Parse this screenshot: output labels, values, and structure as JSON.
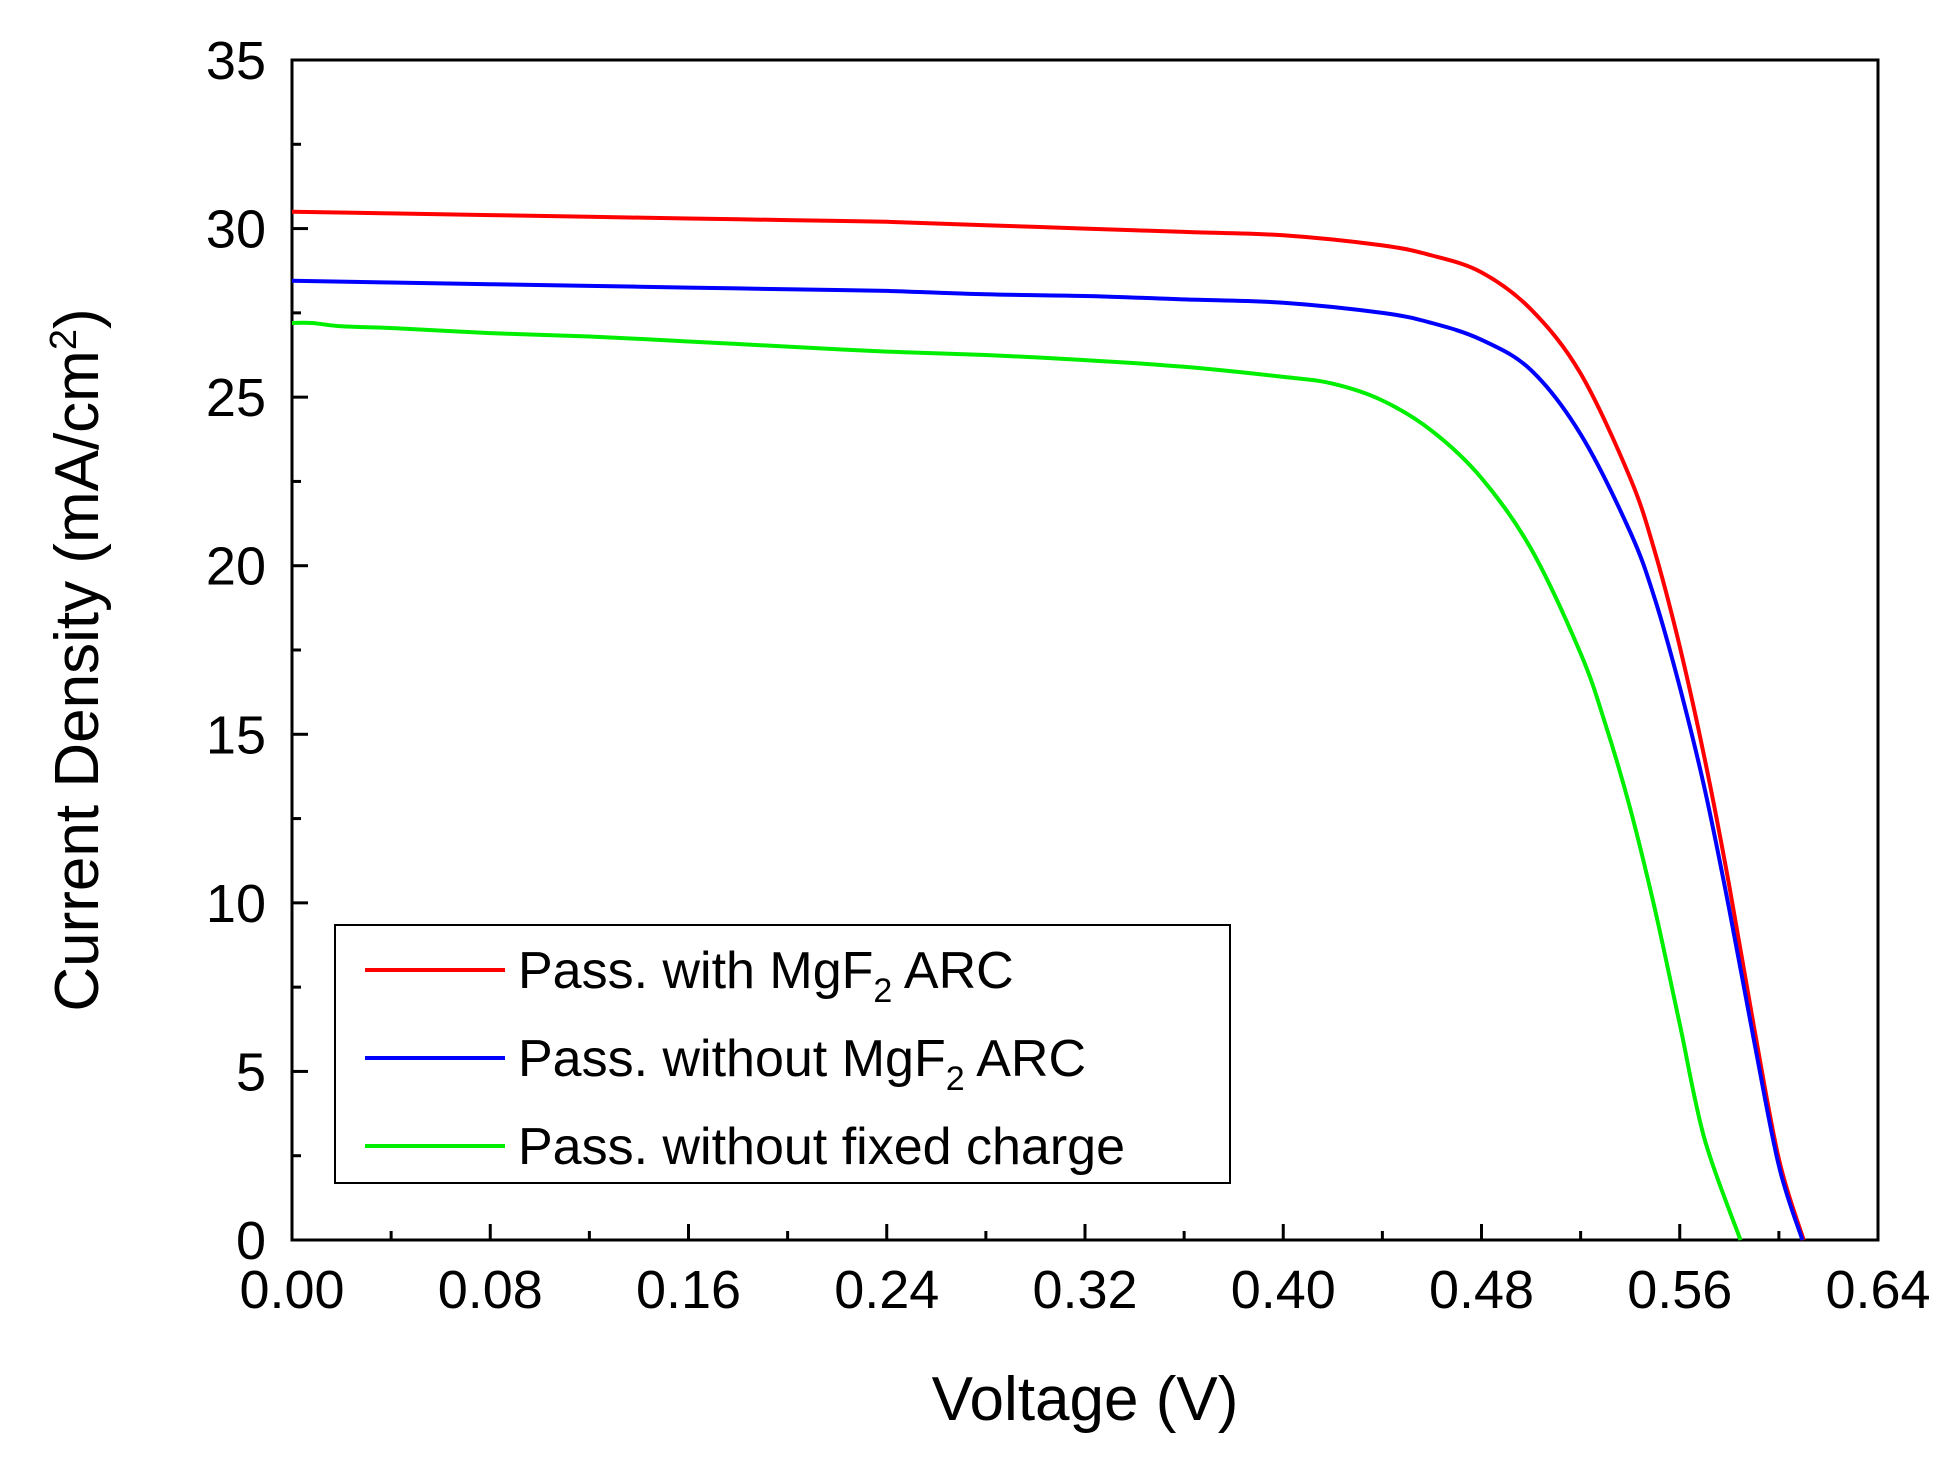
{
  "chart_data": {
    "type": "line",
    "title": "",
    "xlabel": "Voltage (V)",
    "ylabel": "Current Density (mA/cm",
    "ylabel_sup": "2",
    "ylabel_close": ")",
    "xlim": [
      0,
      0.64
    ],
    "ylim": [
      0,
      35
    ],
    "xticks": [
      0.0,
      0.08,
      0.16,
      0.24,
      0.32,
      0.4,
      0.48,
      0.56,
      0.64
    ],
    "xtick_labels": [
      "0.00",
      "0.08",
      "0.16",
      "0.24",
      "0.32",
      "0.40",
      "0.48",
      "0.56",
      "0.64"
    ],
    "yticks": [
      0,
      5,
      10,
      15,
      20,
      25,
      30,
      35
    ],
    "ytick_labels": [
      "0",
      "5",
      "10",
      "15",
      "20",
      "25",
      "30",
      "35"
    ],
    "grid": false,
    "legend_position": "bottom-left",
    "legend": [
      {
        "pre": "Pass. with MgF",
        "sub": "2",
        "post": " ARC"
      },
      {
        "pre": "Pass. without MgF",
        "sub": "2",
        "post": " ARC"
      },
      {
        "pre": "Pass. without fixed charge",
        "sub": "",
        "post": ""
      }
    ],
    "series": [
      {
        "name": "Pass. with MgF2 ARC",
        "color": "#ff0000",
        "x": [
          0.0,
          0.04,
          0.08,
          0.12,
          0.16,
          0.2,
          0.24,
          0.28,
          0.32,
          0.36,
          0.4,
          0.44,
          0.46,
          0.48,
          0.5,
          0.52,
          0.54,
          0.55,
          0.56,
          0.57,
          0.58,
          0.59,
          0.6,
          0.61
        ],
        "y": [
          30.5,
          30.45,
          30.4,
          30.35,
          30.3,
          30.25,
          30.2,
          30.1,
          30.0,
          29.9,
          29.8,
          29.5,
          29.2,
          28.7,
          27.6,
          25.7,
          22.6,
          20.4,
          17.6,
          14.3,
          10.5,
          6.3,
          2.4,
          0.0
        ]
      },
      {
        "name": "Pass. without MgF2 ARC",
        "color": "#0000ff",
        "x": [
          0.0,
          0.04,
          0.08,
          0.12,
          0.16,
          0.2,
          0.24,
          0.28,
          0.32,
          0.36,
          0.4,
          0.44,
          0.46,
          0.48,
          0.5,
          0.52,
          0.54,
          0.55,
          0.56,
          0.57,
          0.58,
          0.59,
          0.6,
          0.6095
        ],
        "y": [
          28.45,
          28.4,
          28.35,
          28.3,
          28.25,
          28.2,
          28.15,
          28.05,
          28.0,
          27.9,
          27.8,
          27.5,
          27.2,
          26.7,
          25.8,
          23.9,
          21.0,
          19.0,
          16.4,
          13.4,
          9.8,
          5.9,
          2.2,
          0.0
        ]
      },
      {
        "name": "Pass. without fixed charge",
        "color": "#00ee00",
        "x": [
          0.0,
          0.008,
          0.02,
          0.04,
          0.08,
          0.12,
          0.16,
          0.2,
          0.24,
          0.28,
          0.32,
          0.36,
          0.4,
          0.42,
          0.44,
          0.46,
          0.48,
          0.5,
          0.52,
          0.53,
          0.54,
          0.55,
          0.56,
          0.57,
          0.5845
        ],
        "y": [
          27.2,
          27.2,
          27.1,
          27.05,
          26.9,
          26.8,
          26.65,
          26.5,
          26.35,
          26.25,
          26.1,
          25.9,
          25.6,
          25.4,
          24.9,
          24.0,
          22.6,
          20.5,
          17.4,
          15.3,
          12.8,
          9.8,
          6.4,
          3.0,
          0.0
        ]
      }
    ]
  }
}
